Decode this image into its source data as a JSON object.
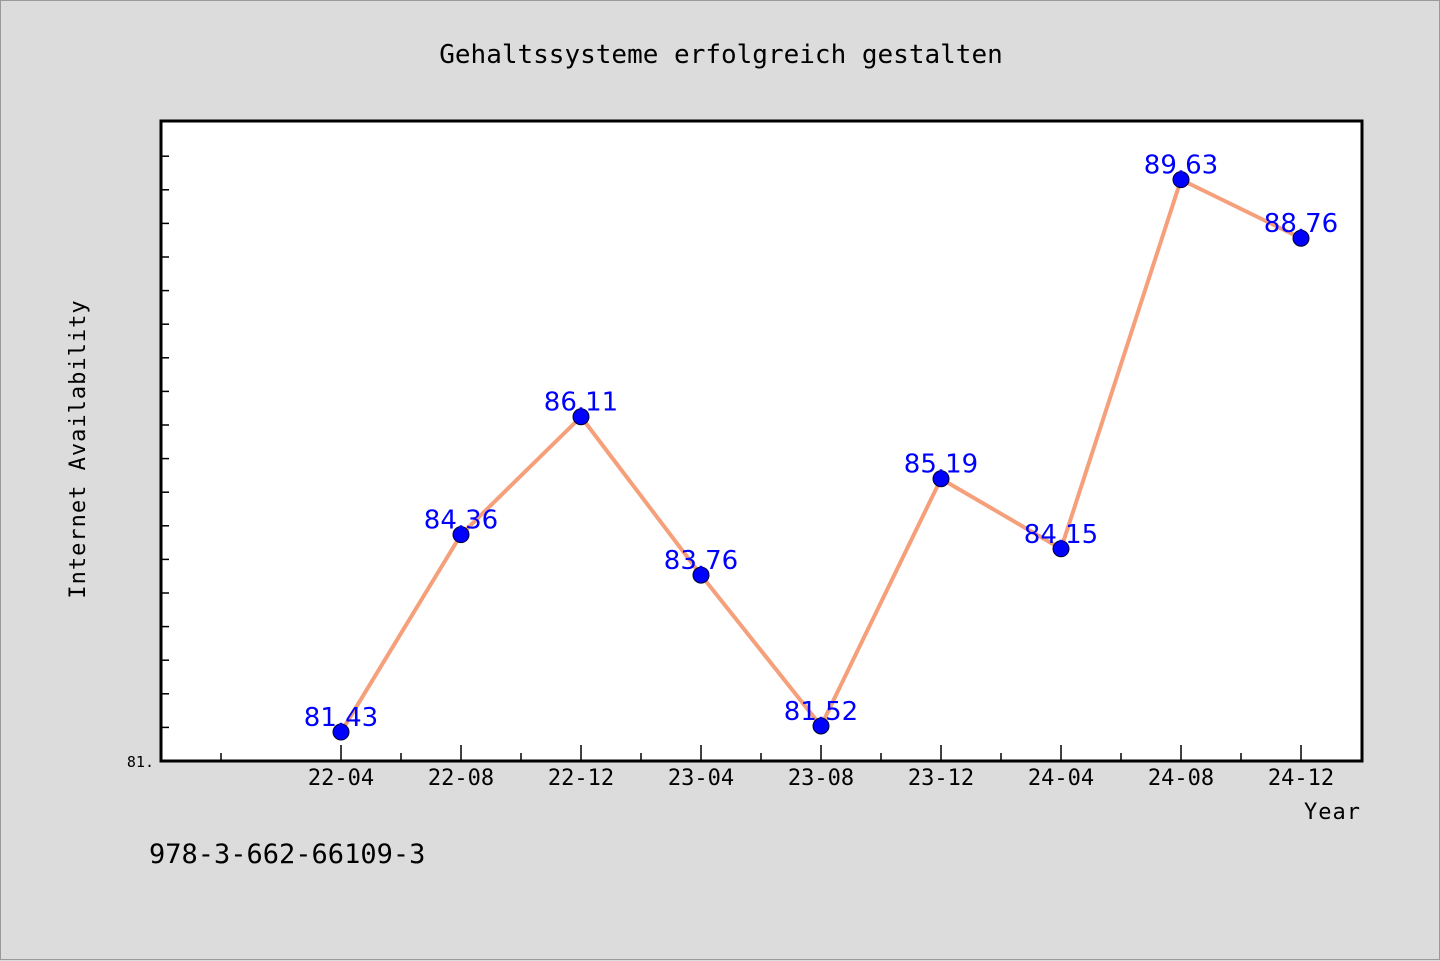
{
  "footer": {
    "isbn": "978-3-662-66109-3"
  },
  "colors": {
    "line": "#f5a07a",
    "marker": "#0000ff",
    "label": "#0000ff",
    "background": "#dcdcdc",
    "plot_background": "#ffffff"
  },
  "chart_data": {
    "type": "line",
    "title": "Gehaltssysteme erfolgreich gestalten",
    "xlabel": "Year",
    "ylabel": "Internet Availability",
    "categories": [
      "22-04",
      "22-08",
      "22-12",
      "23-04",
      "23-08",
      "23-12",
      "24-04",
      "24-08",
      "24-12"
    ],
    "series": [
      {
        "values": [
          81.43,
          84.36,
          86.11,
          83.76,
          81.52,
          85.19,
          84.15,
          89.63,
          88.76
        ]
      }
    ],
    "data_labels": [
      "81.43",
      "84.36",
      "86.11",
      "83.76",
      "81.52",
      "85.19",
      "84.15",
      "89.63",
      "88.76"
    ],
    "y_tick_labels": [
      "81."
    ],
    "ylim": [
      81.0,
      90.5
    ],
    "grid": false,
    "legend": "none"
  }
}
